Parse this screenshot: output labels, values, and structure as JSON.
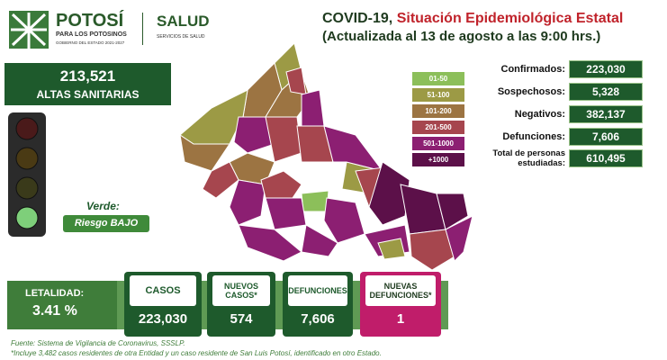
{
  "header": {
    "logo_title": "POTOSÍ",
    "logo_subtitle": "PARA LOS POTOSINOS",
    "logo_caption": "GOBIERNO DEL ESTADO 2021-2027",
    "agency": "SALUD",
    "agency_subtitle": "SERVICIOS DE SALUD",
    "title_prefix": "COVID-19,",
    "title_highlight": "Situación Epidemiológica Estatal",
    "subtitle": "(Actualizada al 13 de agosto a las 9:00 hrs.)"
  },
  "recovered": {
    "value": "213,521",
    "label": "ALTAS SANITARIAS"
  },
  "traffic_light": {
    "status": "Verde:",
    "risk": "Riesgo BAJO"
  },
  "legend": [
    {
      "label": "01-50",
      "color": "#8cbf5a"
    },
    {
      "label": "51-100",
      "color": "#9c9a45"
    },
    {
      "label": "101-200",
      "color": "#9c7442"
    },
    {
      "label": "201-500",
      "color": "#a6464e"
    },
    {
      "label": "501-1000",
      "color": "#8c1f72"
    },
    {
      "label": "+1000",
      "color": "#5c1049"
    }
  ],
  "stats": [
    {
      "label": "Confirmados:",
      "value": "223,030"
    },
    {
      "label": "Sospechosos:",
      "value": "5,328"
    },
    {
      "label": "Negativos:",
      "value": "382,137"
    },
    {
      "label": "Defunciones:",
      "value": "7,606"
    },
    {
      "label": "Total de personas estudiadas:",
      "value": "610,495"
    }
  ],
  "summary": {
    "lethality": {
      "label": "LETALIDAD:",
      "value": "3.41 %"
    },
    "cards": [
      {
        "label": "CASOS",
        "value": "223,030"
      },
      {
        "label": "NUEVOS CASOS*",
        "value": "574"
      },
      {
        "label": "DEFUNCIONES",
        "value": "7,606"
      },
      {
        "label": "NUEVAS DEFUNCIONES*",
        "value": "1"
      }
    ]
  },
  "footnotes": [
    "Fuente: Sistema de Vigilancia de Coronavirus, SSSLP.",
    "*Incluye 3,482 casos residentes de otra Entidad y un caso residente de San Luis Potosí, identificado en otro Estado."
  ]
}
